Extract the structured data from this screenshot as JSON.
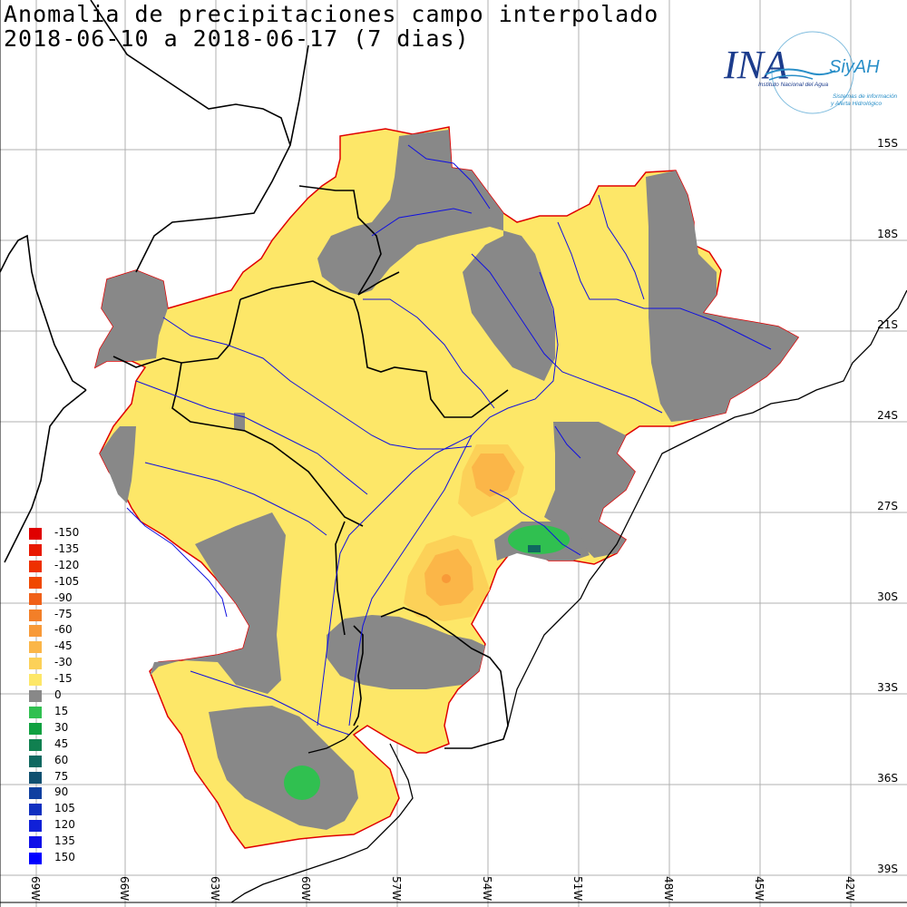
{
  "title": {
    "line1": "Anomalia de precipitaciones campo interpolado",
    "line2": "2018-06-10 a 2018-06-17 (7 dias)"
  },
  "logo": {
    "mark": "INA",
    "subtitle": "Instituto Nacional del Agua",
    "brand": "SiyAH",
    "brand_sub1": "Sistemas de información",
    "brand_sub2": "y Alerta Hidrológico"
  },
  "lat_labels": [
    "15S",
    "18S",
    "21S",
    "24S",
    "27S",
    "30S",
    "33S",
    "36S",
    "39S"
  ],
  "lon_labels": [
    "69W",
    "66W",
    "63W",
    "60W",
    "57W",
    "54W",
    "51W",
    "48W",
    "45W",
    "42W"
  ],
  "legend": [
    {
      "value": "-150",
      "color": "#e00000"
    },
    {
      "value": "-135",
      "color": "#e81800"
    },
    {
      "value": "-120",
      "color": "#ee3000"
    },
    {
      "value": "-105",
      "color": "#f04800"
    },
    {
      "value": "-90",
      "color": "#f06018"
    },
    {
      "value": "-75",
      "color": "#f37f28"
    },
    {
      "value": "-60",
      "color": "#f89a38"
    },
    {
      "value": "-45",
      "color": "#fbb648"
    },
    {
      "value": "-30",
      "color": "#fcd158"
    },
    {
      "value": "-15",
      "color": "#fde768"
    },
    {
      "value": "0",
      "color": "#888888"
    },
    {
      "value": "15",
      "color": "#30c050"
    },
    {
      "value": "30",
      "color": "#10a040"
    },
    {
      "value": "45",
      "color": "#108050"
    },
    {
      "value": "60",
      "color": "#106860"
    },
    {
      "value": "75",
      "color": "#105070"
    },
    {
      "value": "90",
      "color": "#1040a0"
    },
    {
      "value": "105",
      "color": "#1030c0"
    },
    {
      "value": "120",
      "color": "#1020d8"
    },
    {
      "value": "135",
      "color": "#1010e8"
    },
    {
      "value": "150",
      "color": "#0000ff"
    }
  ]
}
